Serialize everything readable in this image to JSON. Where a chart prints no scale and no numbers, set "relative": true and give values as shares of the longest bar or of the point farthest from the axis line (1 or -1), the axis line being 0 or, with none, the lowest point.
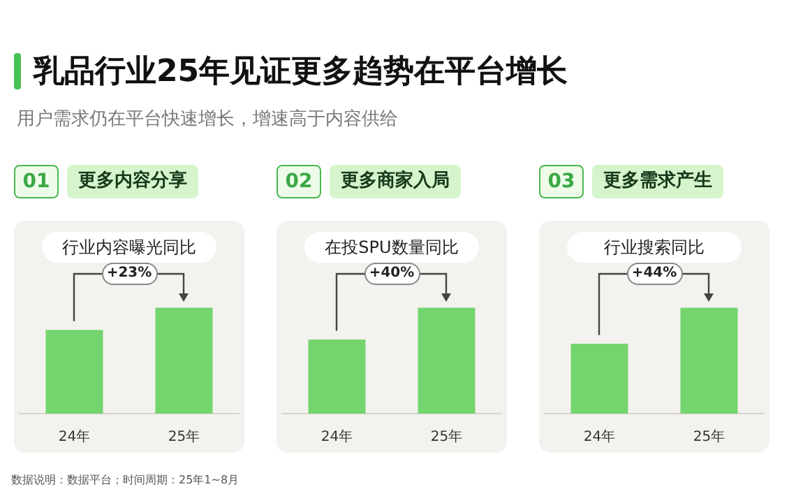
{
  "chart_data": [
    {
      "type": "bar",
      "title": "行业内容曝光同比",
      "subtitle": "更多内容分享",
      "categories": [
        "24年",
        "25年"
      ],
      "values": [
        0.79,
        1
      ],
      "color": "#74d56f",
      "relative": true,
      "grid": false,
      "legend": false,
      "annotations": [
        {
          "text": "+23%",
          "x": "25年",
          "y": 1
        },
        "01",
        "乳品行业25年见证更多趋势在平台增长",
        "用户需求仍在平台快速增长，增速高于内容供给",
        "数据说明：数据平台；时间周期：25年1~8月"
      ]
    },
    {
      "type": "bar",
      "title": "在投SPU数量同比",
      "subtitle": "更多商家入局",
      "categories": [
        "24年",
        "25年"
      ],
      "values": [
        0.7,
        1
      ],
      "color": "#74d56f",
      "relative": true,
      "grid": false,
      "legend": false,
      "annotations": [
        {
          "text": "+40%",
          "x": "25年",
          "y": 1
        },
        "02"
      ]
    },
    {
      "type": "bar",
      "title": "行业搜索同比",
      "subtitle": "更多需求产生",
      "categories": [
        "24年",
        "25年"
      ],
      "values": [
        0.66,
        1
      ],
      "color": "#74d56f",
      "relative": true,
      "grid": false,
      "legend": false,
      "annotations": [
        {
          "text": "+44%",
          "x": "25年",
          "y": 1
        },
        "03"
      ]
    }
  ]
}
